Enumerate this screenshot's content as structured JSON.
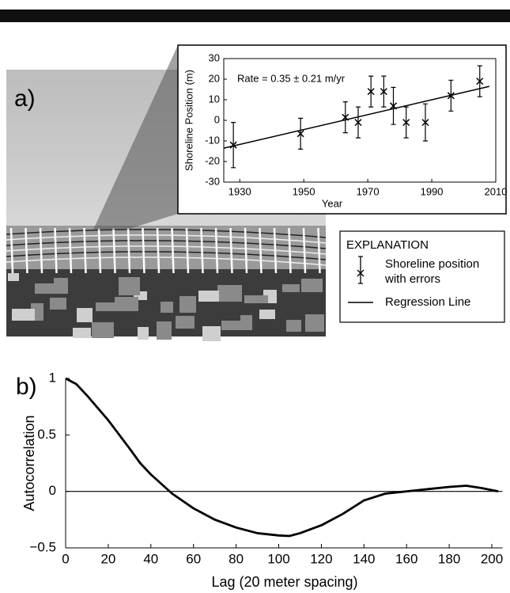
{
  "chart_data": [
    {
      "type": "errorbar",
      "panel_label": "a)",
      "annotation": "Rate = 0.35 ± 0.21 m/yr",
      "xlabel": "Year",
      "ylabel": "Shoreline Position (m)",
      "x": [
        1928,
        1949,
        1963,
        1967,
        1971,
        1975,
        1978,
        1982,
        1988,
        1996,
        2005
      ],
      "values": [
        -12,
        -6.5,
        1.5,
        -1,
        14,
        14,
        7,
        -1,
        -1,
        12,
        19
      ],
      "errors": [
        11,
        7.5,
        7.5,
        7.5,
        7.5,
        7.5,
        9,
        7.5,
        9,
        7.5,
        7.5
      ],
      "regression": {
        "x": [
          1925,
          2008
        ],
        "y": [
          -13.5,
          16.5
        ]
      },
      "color": "#000000",
      "xlim": [
        1925,
        2010
      ],
      "ylim": [
        -30,
        30
      ],
      "xticks": [
        1930,
        1950,
        1970,
        1990,
        2010
      ],
      "yticks": [
        -30,
        -20,
        -10,
        0,
        10,
        20,
        30
      ],
      "legend": {
        "title": "EXPLANATION",
        "items": [
          {
            "label_lines": [
              "Shoreline position",
              "with errors"
            ]
          },
          {
            "label_lines": [
              "Regression Line"
            ]
          }
        ]
      }
    },
    {
      "type": "line",
      "panel_label": "b)",
      "xlabel": "Lag (20 meter spacing)",
      "ylabel": "Autocorrelation",
      "x": [
        0,
        5,
        10,
        20,
        30,
        35,
        40,
        50,
        60,
        70,
        80,
        90,
        100,
        105,
        110,
        120,
        130,
        140,
        150,
        160,
        170,
        180,
        188,
        195,
        203
      ],
      "values": [
        1.0,
        0.95,
        0.85,
        0.63,
        0.38,
        0.25,
        0.15,
        -0.02,
        -0.15,
        -0.25,
        -0.32,
        -0.37,
        -0.39,
        -0.395,
        -0.37,
        -0.3,
        -0.2,
        -0.08,
        -0.02,
        0.0,
        0.02,
        0.04,
        0.05,
        0.03,
        0.0
      ],
      "color": "#000000",
      "xlim": [
        0,
        205
      ],
      "ylim": [
        -0.5,
        1
      ],
      "xticks": [
        0,
        20,
        40,
        60,
        80,
        100,
        120,
        140,
        160,
        180,
        200
      ],
      "yticks": [
        {
          "value": -0.5,
          "label": "−0.5"
        },
        0,
        0.5,
        1
      ]
    }
  ]
}
